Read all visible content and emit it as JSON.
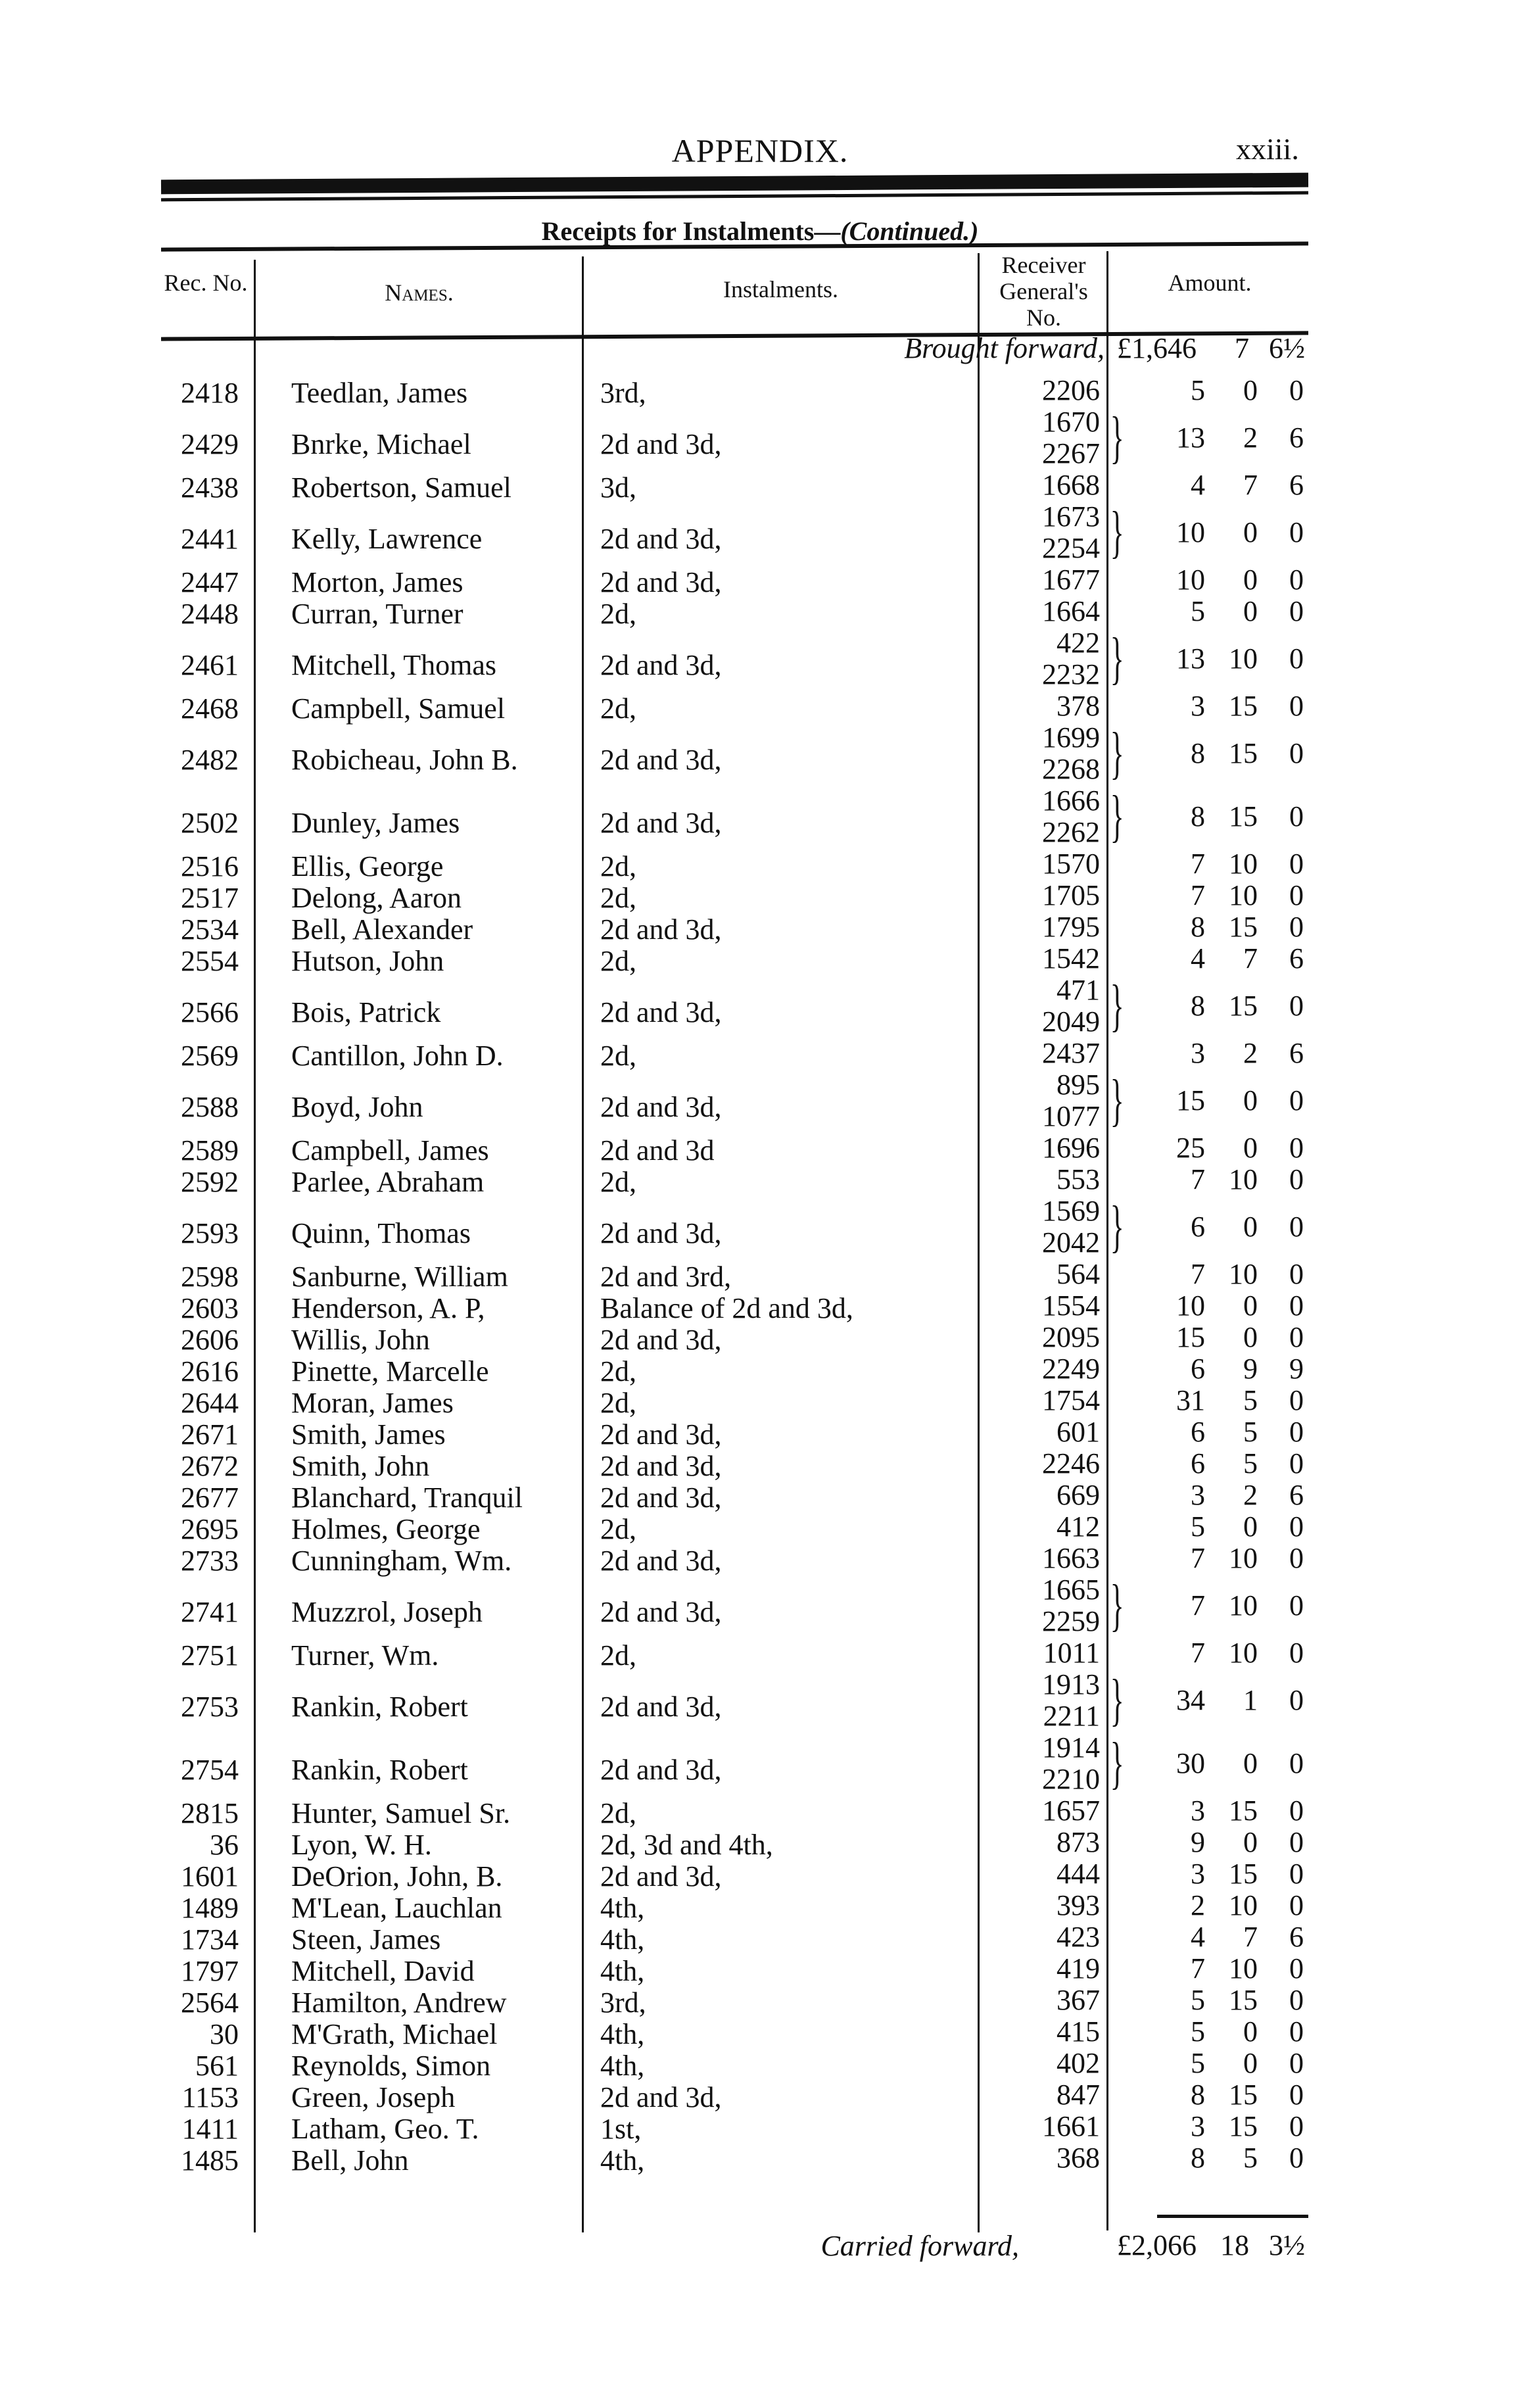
{
  "header": {
    "title": "APPENDIX.",
    "page_number": "xxiii."
  },
  "table": {
    "subtitle": "Receipts for Instalments—",
    "subtitle_cont": "(Continued.)",
    "columns": {
      "rec_no": "Rec. No.",
      "names": "Names.",
      "instalments": "Instalments.",
      "receiver": "Receiver General's No.",
      "amount": "Amount."
    },
    "brought_forward": {
      "label": "Brought forward,",
      "pounds": "£1,646",
      "shillings": "7",
      "pence": "6½"
    },
    "rows": [
      {
        "rec": "2418",
        "name": "Teedlan, James",
        "inst": "3rd,",
        "rg": [
          "2206"
        ],
        "l": "5",
        "s": "0",
        "d": "0"
      },
      {
        "rec": "2429",
        "name": "Bnrke, Michael",
        "inst": "2d and 3d,",
        "rg": [
          "1670",
          "2267"
        ],
        "l": "13",
        "s": "2",
        "d": "6"
      },
      {
        "rec": "2438",
        "name": "Robertson, Samuel",
        "inst": "3d,",
        "rg": [
          "1668"
        ],
        "l": "4",
        "s": "7",
        "d": "6"
      },
      {
        "rec": "2441",
        "name": "Kelly, Lawrence",
        "inst": "2d and 3d,",
        "rg": [
          "1673",
          "2254"
        ],
        "l": "10",
        "s": "0",
        "d": "0"
      },
      {
        "rec": "2447",
        "name": "Morton, James",
        "inst": "2d and 3d,",
        "rg": [
          "1677"
        ],
        "l": "10",
        "s": "0",
        "d": "0"
      },
      {
        "rec": "2448",
        "name": "Curran, Turner",
        "inst": "2d,",
        "rg": [
          "1664"
        ],
        "l": "5",
        "s": "0",
        "d": "0"
      },
      {
        "rec": "2461",
        "name": "Mitchell, Thomas",
        "inst": "2d and 3d,",
        "rg": [
          "422",
          "2232"
        ],
        "l": "13",
        "s": "10",
        "d": "0"
      },
      {
        "rec": "2468",
        "name": "Campbell, Samuel",
        "inst": "2d,",
        "rg": [
          "378"
        ],
        "l": "3",
        "s": "15",
        "d": "0"
      },
      {
        "rec": "2482",
        "name": "Robicheau, John B.",
        "inst": "2d and 3d,",
        "rg": [
          "1699",
          "2268"
        ],
        "l": "8",
        "s": "15",
        "d": "0"
      },
      {
        "rec": "2502",
        "name": "Dunley, James",
        "inst": "2d and 3d,",
        "rg": [
          "1666",
          "2262"
        ],
        "l": "8",
        "s": "15",
        "d": "0"
      },
      {
        "rec": "2516",
        "name": "Ellis, George",
        "inst": "2d,",
        "rg": [
          "1570"
        ],
        "l": "7",
        "s": "10",
        "d": "0"
      },
      {
        "rec": "2517",
        "name": "Delong, Aaron",
        "inst": "2d,",
        "rg": [
          "1705"
        ],
        "l": "7",
        "s": "10",
        "d": "0"
      },
      {
        "rec": "2534",
        "name": "Bell, Alexander",
        "inst": "2d and 3d,",
        "rg": [
          "1795"
        ],
        "l": "8",
        "s": "15",
        "d": "0"
      },
      {
        "rec": "2554",
        "name": "Hutson, John",
        "inst": "2d,",
        "rg": [
          "1542"
        ],
        "l": "4",
        "s": "7",
        "d": "6"
      },
      {
        "rec": "2566",
        "name": "Bois, Patrick",
        "inst": "2d and 3d,",
        "rg": [
          "471",
          "2049"
        ],
        "l": "8",
        "s": "15",
        "d": "0"
      },
      {
        "rec": "2569",
        "name": "Cantillon, John D.",
        "inst": "2d,",
        "rg": [
          "2437"
        ],
        "l": "3",
        "s": "2",
        "d": "6"
      },
      {
        "rec": "2588",
        "name": "Boyd, John",
        "inst": "2d and 3d,",
        "rg": [
          "895",
          "1077"
        ],
        "l": "15",
        "s": "0",
        "d": "0"
      },
      {
        "rec": "2589",
        "name": "Campbell, James",
        "inst": "2d and 3d",
        "rg": [
          "1696"
        ],
        "l": "25",
        "s": "0",
        "d": "0"
      },
      {
        "rec": "2592",
        "name": "Parlee, Abraham",
        "inst": "2d,",
        "rg": [
          "553"
        ],
        "l": "7",
        "s": "10",
        "d": "0"
      },
      {
        "rec": "2593",
        "name": "Quinn, Thomas",
        "inst": "2d and 3d,",
        "rg": [
          "1569",
          "2042"
        ],
        "l": "6",
        "s": "0",
        "d": "0"
      },
      {
        "rec": "2598",
        "name": "Sanburne, William",
        "inst": "2d and 3rd,",
        "rg": [
          "564"
        ],
        "l": "7",
        "s": "10",
        "d": "0"
      },
      {
        "rec": "2603",
        "name": "Henderson, A. P,",
        "inst": "Balance of 2d and 3d,",
        "rg": [
          "1554"
        ],
        "l": "10",
        "s": "0",
        "d": "0"
      },
      {
        "rec": "2606",
        "name": "Willis, John",
        "inst": "2d and 3d,",
        "rg": [
          "2095"
        ],
        "l": "15",
        "s": "0",
        "d": "0"
      },
      {
        "rec": "2616",
        "name": "Pinette, Marcelle",
        "inst": "2d,",
        "rg": [
          "2249"
        ],
        "l": "6",
        "s": "9",
        "d": "9"
      },
      {
        "rec": "2644",
        "name": "Moran, James",
        "inst": "2d,",
        "rg": [
          "1754"
        ],
        "l": "31",
        "s": "5",
        "d": "0"
      },
      {
        "rec": "2671",
        "name": "Smith, James",
        "inst": "2d and 3d,",
        "rg": [
          "601"
        ],
        "l": "6",
        "s": "5",
        "d": "0"
      },
      {
        "rec": "2672",
        "name": "Smith, John",
        "inst": "2d and 3d,",
        "rg": [
          "2246"
        ],
        "l": "6",
        "s": "5",
        "d": "0"
      },
      {
        "rec": "2677",
        "name": "Blanchard, Tranquil",
        "inst": "2d and 3d,",
        "rg": [
          "669"
        ],
        "l": "3",
        "s": "2",
        "d": "6"
      },
      {
        "rec": "2695",
        "name": "Holmes, George",
        "inst": "2d,",
        "rg": [
          "412"
        ],
        "l": "5",
        "s": "0",
        "d": "0"
      },
      {
        "rec": "2733",
        "name": "Cunningham, Wm.",
        "inst": "2d and 3d,",
        "rg": [
          "1663"
        ],
        "l": "7",
        "s": "10",
        "d": "0"
      },
      {
        "rec": "2741",
        "name": "Muzzrol, Joseph",
        "inst": "2d and 3d,",
        "rg": [
          "1665",
          "2259"
        ],
        "l": "7",
        "s": "10",
        "d": "0"
      },
      {
        "rec": "2751",
        "name": "Turner, Wm.",
        "inst": "2d,",
        "rg": [
          "1011"
        ],
        "l": "7",
        "s": "10",
        "d": "0"
      },
      {
        "rec": "2753",
        "name": "Rankin, Robert",
        "inst": "2d and 3d,",
        "rg": [
          "1913",
          "2211"
        ],
        "l": "34",
        "s": "1",
        "d": "0"
      },
      {
        "rec": "2754",
        "name": "Rankin, Robert",
        "inst": "2d and 3d,",
        "rg": [
          "1914",
          "2210"
        ],
        "l": "30",
        "s": "0",
        "d": "0"
      },
      {
        "rec": "2815",
        "name": "Hunter, Samuel Sr.",
        "inst": "2d,",
        "rg": [
          "1657"
        ],
        "l": "3",
        "s": "15",
        "d": "0"
      },
      {
        "rec": "36",
        "name": "Lyon, W. H.",
        "inst": "2d, 3d and 4th,",
        "rg": [
          "873"
        ],
        "l": "9",
        "s": "0",
        "d": "0"
      },
      {
        "rec": "1601",
        "name": "DeOrion, John, B.",
        "inst": "2d and 3d,",
        "rg": [
          "444"
        ],
        "l": "3",
        "s": "15",
        "d": "0"
      },
      {
        "rec": "1489",
        "name": "M'Lean, Lauchlan",
        "inst": "4th,",
        "rg": [
          "393"
        ],
        "l": "2",
        "s": "10",
        "d": "0"
      },
      {
        "rec": "1734",
        "name": "Steen, James",
        "inst": "4th,",
        "rg": [
          "423"
        ],
        "l": "4",
        "s": "7",
        "d": "6"
      },
      {
        "rec": "1797",
        "name": "Mitchell, David",
        "inst": "4th,",
        "rg": [
          "419"
        ],
        "l": "7",
        "s": "10",
        "d": "0"
      },
      {
        "rec": "2564",
        "name": "Hamilton, Andrew",
        "inst": "3rd,",
        "rg": [
          "367"
        ],
        "l": "5",
        "s": "15",
        "d": "0"
      },
      {
        "rec": "30",
        "name": "M'Grath, Michael",
        "inst": "4th,",
        "rg": [
          "415"
        ],
        "l": "5",
        "s": "0",
        "d": "0"
      },
      {
        "rec": "561",
        "name": "Reynolds, Simon",
        "inst": "4th,",
        "rg": [
          "402"
        ],
        "l": "5",
        "s": "0",
        "d": "0"
      },
      {
        "rec": "1153",
        "name": "Green, Joseph",
        "inst": "2d and 3d,",
        "rg": [
          "847"
        ],
        "l": "8",
        "s": "15",
        "d": "0"
      },
      {
        "rec": "1411",
        "name": "Latham, Geo. T.",
        "inst": "1st,",
        "rg": [
          "1661"
        ],
        "l": "3",
        "s": "15",
        "d": "0"
      },
      {
        "rec": "1485",
        "name": "Bell, John",
        "inst": "4th,",
        "rg": [
          "368"
        ],
        "l": "8",
        "s": "5",
        "d": "0"
      }
    ],
    "carried_forward": {
      "label": "Carried forward,",
      "pounds": "£2,066",
      "shillings": "18",
      "pence": "3½"
    }
  }
}
